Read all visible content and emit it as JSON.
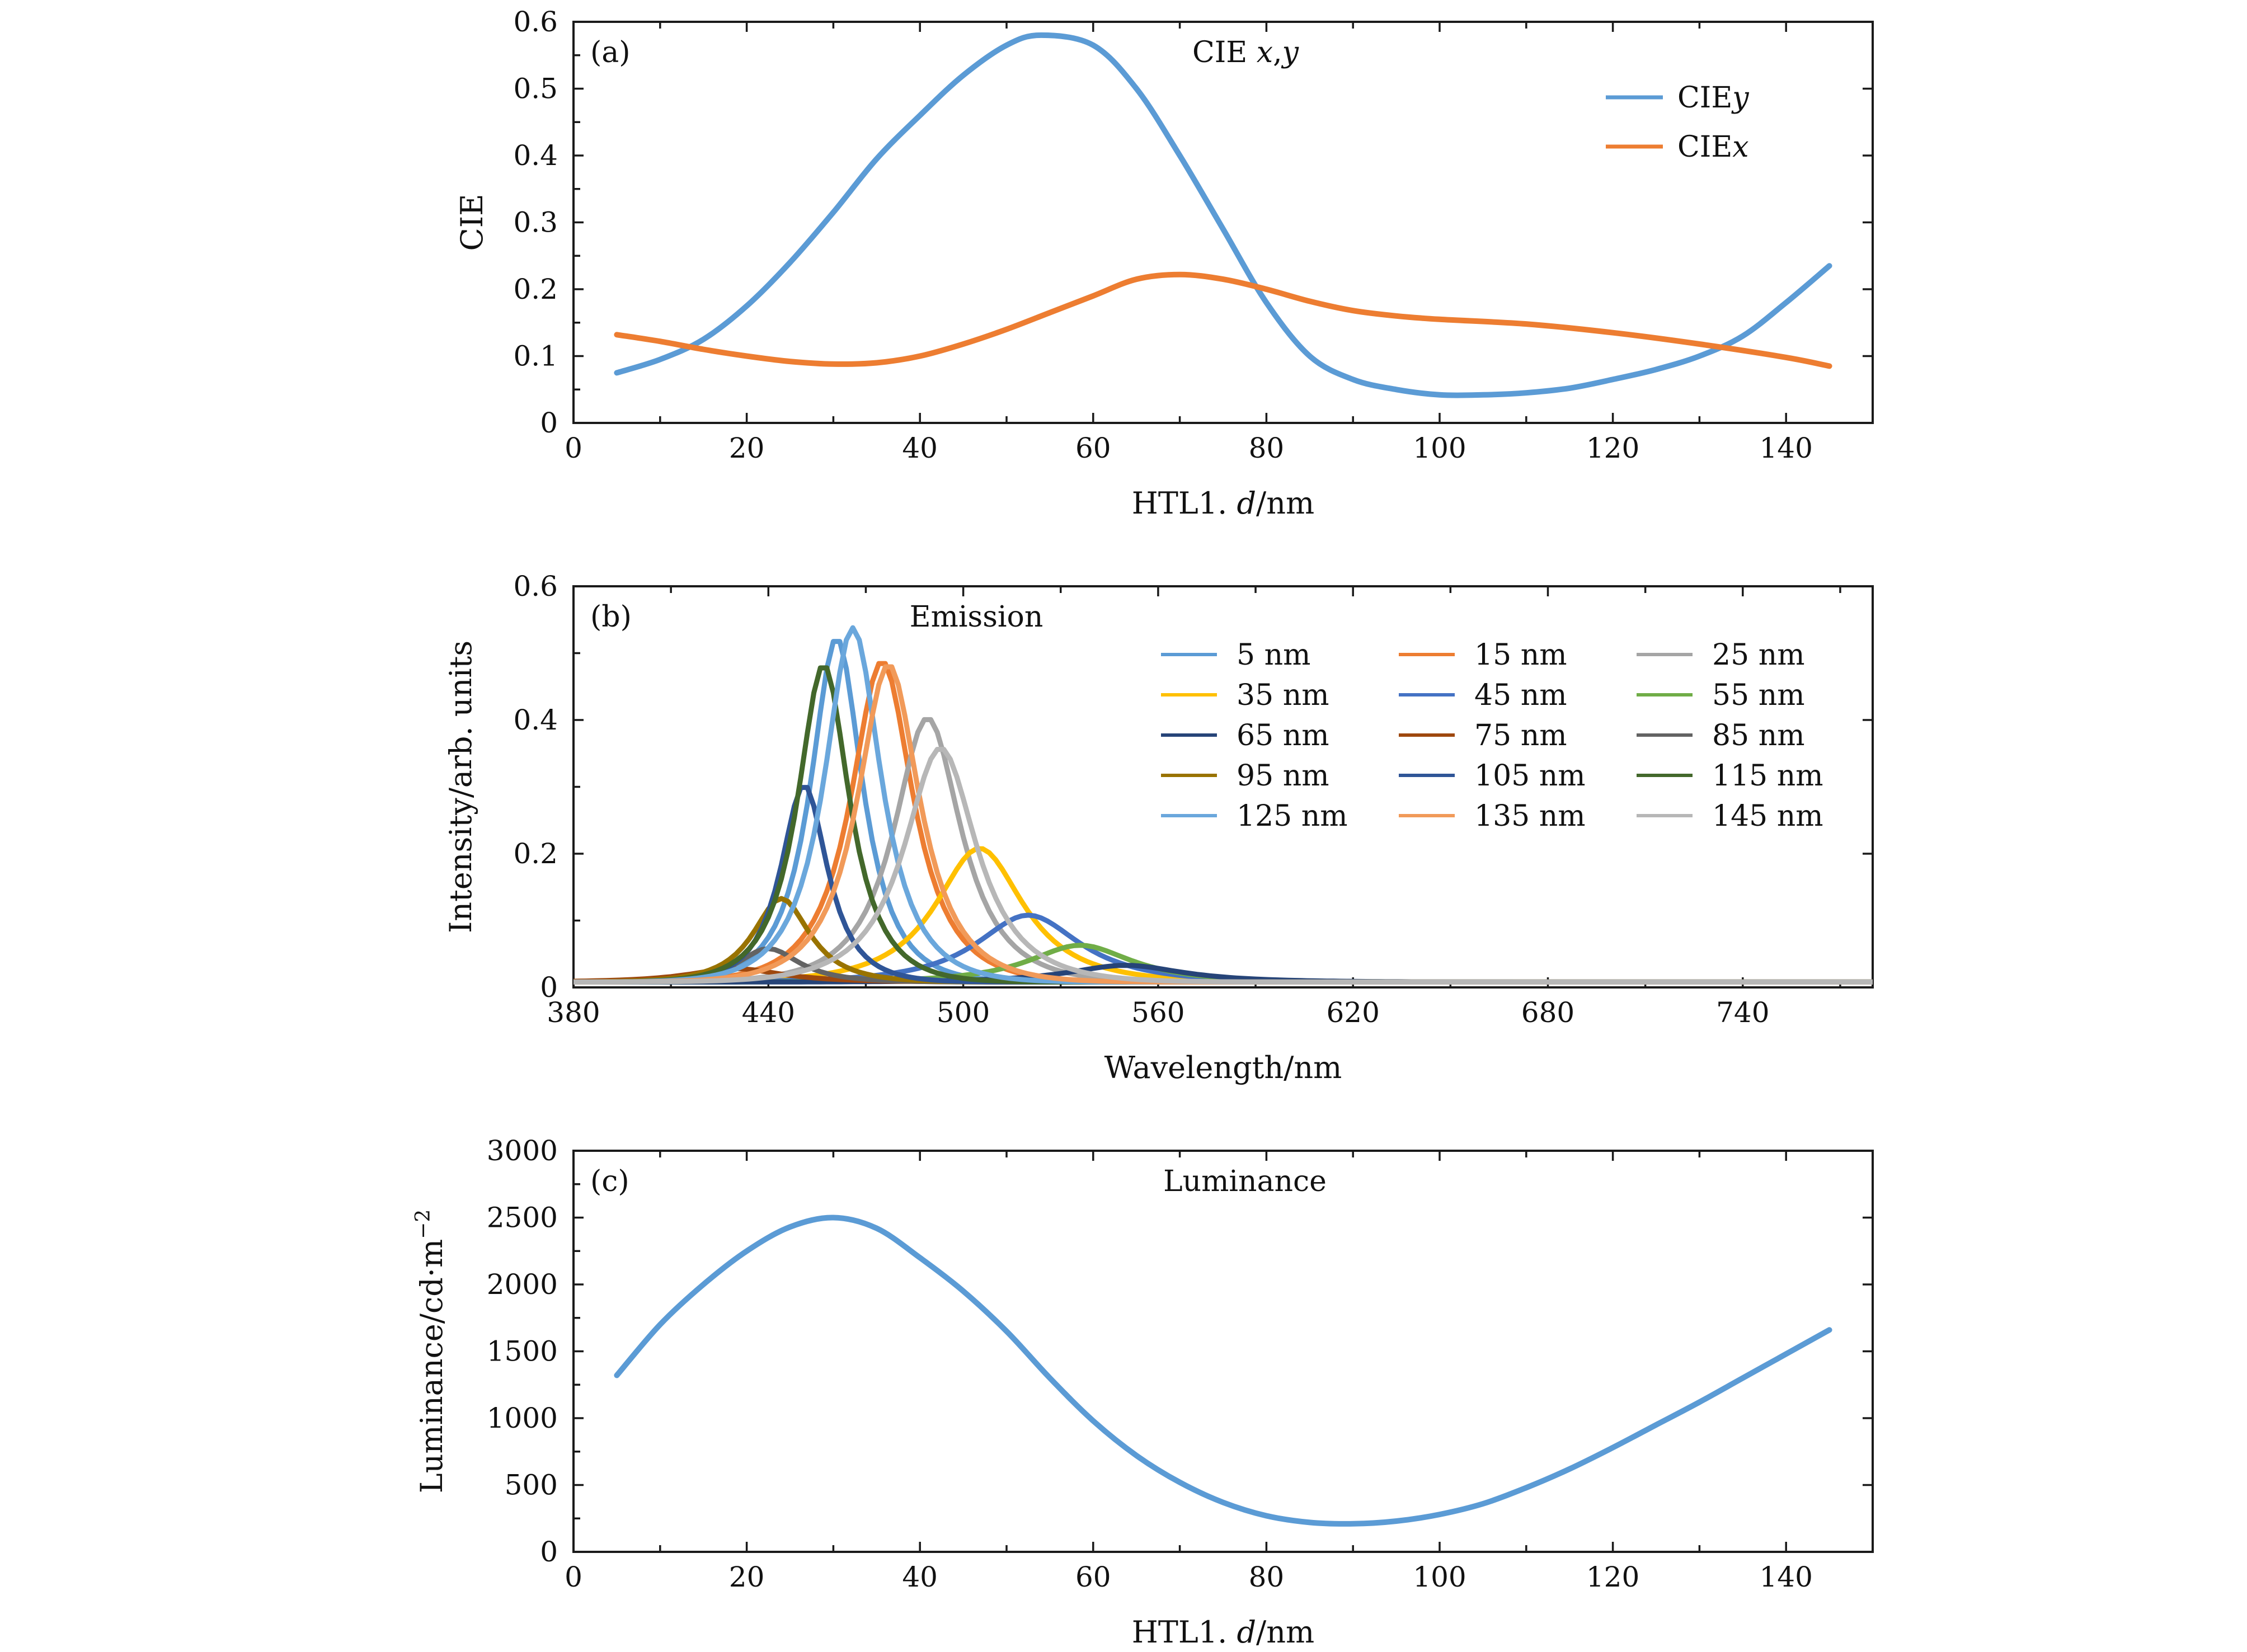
{
  "chart_data": [
    {
      "type": "line",
      "panel_label": "(a)",
      "title": "CIE x,y",
      "xlabel": "HTL1. d/nm",
      "ylabel": "CIE",
      "xlim": [
        0,
        150
      ],
      "ylim": [
        0,
        0.6
      ],
      "xticks": [
        0,
        20,
        40,
        60,
        80,
        100,
        120,
        140
      ],
      "yticks": [
        0,
        0.1,
        0.2,
        0.3,
        0.4,
        0.5,
        0.6
      ],
      "ytick_labels": [
        "0",
        "0.1",
        "0.2",
        "0.3",
        "0.4",
        "0.5",
        "0.6"
      ],
      "legend_position": "top-right",
      "series": [
        {
          "name": "CIEy",
          "color": "#5b9bd5",
          "x": [
            5,
            10,
            15,
            20,
            25,
            30,
            35,
            40,
            45,
            50,
            54,
            60,
            65,
            70,
            75,
            80,
            85,
            90,
            95,
            100,
            105,
            110,
            115,
            120,
            125,
            130,
            135,
            140,
            145
          ],
          "y": [
            0.075,
            0.095,
            0.125,
            0.175,
            0.24,
            0.315,
            0.395,
            0.46,
            0.52,
            0.565,
            0.58,
            0.565,
            0.5,
            0.4,
            0.29,
            0.18,
            0.1,
            0.065,
            0.05,
            0.042,
            0.042,
            0.045,
            0.052,
            0.065,
            0.08,
            0.1,
            0.13,
            0.18,
            0.235
          ]
        },
        {
          "name": "CIEx",
          "color": "#ed7d31",
          "x": [
            5,
            10,
            15,
            20,
            25,
            30,
            35,
            40,
            45,
            50,
            55,
            60,
            65,
            70,
            75,
            80,
            85,
            90,
            95,
            100,
            110,
            120,
            130,
            140,
            145
          ],
          "y": [
            0.132,
            0.122,
            0.11,
            0.1,
            0.092,
            0.088,
            0.09,
            0.1,
            0.118,
            0.14,
            0.165,
            0.19,
            0.215,
            0.222,
            0.215,
            0.2,
            0.182,
            0.168,
            0.16,
            0.155,
            0.148,
            0.135,
            0.118,
            0.098,
            0.085
          ]
        }
      ]
    },
    {
      "type": "line",
      "panel_label": "(b)",
      "title": "Emission",
      "xlabel": "Wavelength/nm",
      "ylabel": "Intensity/arb. units",
      "xlim": [
        380,
        780
      ],
      "ylim": [
        0,
        0.6
      ],
      "xticks": [
        380,
        440,
        500,
        560,
        620,
        680,
        740
      ],
      "yticks": [
        0,
        0.2,
        0.4,
        0.6
      ],
      "ytick_labels": [
        "0",
        "0.2",
        "0.4",
        "0.6"
      ],
      "legend_position": "top-right",
      "baseline": 0.008,
      "series": [
        {
          "name": "5 nm",
          "color": "#5b9bd5",
          "peak_nm": 461,
          "peak_intensity": 0.515,
          "width_nm": 10
        },
        {
          "name": "15 nm",
          "color": "#ed7d31",
          "peak_nm": 475,
          "peak_intensity": 0.48,
          "width_nm": 12
        },
        {
          "name": "25 nm",
          "color": "#a5a5a5",
          "peak_nm": 489,
          "peak_intensity": 0.395,
          "width_nm": 13
        },
        {
          "name": "35 nm",
          "color": "#ffc000",
          "peak_nm": 505,
          "peak_intensity": 0.2,
          "width_nm": 17
        },
        {
          "name": "45 nm",
          "color": "#4472c4",
          "peak_nm": 520,
          "peak_intensity": 0.1,
          "width_nm": 20
        },
        {
          "name": "55 nm",
          "color": "#70ad47",
          "peak_nm": 536,
          "peak_intensity": 0.055,
          "width_nm": 20
        },
        {
          "name": "65 nm",
          "color": "#264478",
          "peak_nm": 550,
          "peak_intensity": 0.025,
          "width_nm": 22
        },
        {
          "name": "75 nm",
          "color": "#9e480e",
          "peak_nm": 430,
          "peak_intensity": 0.02,
          "width_nm": 18
        },
        {
          "name": "85 nm",
          "color": "#636363",
          "peak_nm": 440,
          "peak_intensity": 0.05,
          "width_nm": 12
        },
        {
          "name": "95 nm",
          "color": "#997300",
          "peak_nm": 444,
          "peak_intensity": 0.125,
          "width_nm": 11
        },
        {
          "name": "105 nm",
          "color": "#2f5597",
          "peak_nm": 451,
          "peak_intensity": 0.295,
          "width_nm": 9
        },
        {
          "name": "115 nm",
          "color": "#43682b",
          "peak_nm": 457,
          "peak_intensity": 0.475,
          "width_nm": 10
        },
        {
          "name": "125 nm",
          "color": "#6aa7dc",
          "peak_nm": 466,
          "peak_intensity": 0.53,
          "width_nm": 11
        },
        {
          "name": "135 nm",
          "color": "#f19a59",
          "peak_nm": 477,
          "peak_intensity": 0.475,
          "width_nm": 12
        },
        {
          "name": "145 nm",
          "color": "#b7b7b7",
          "peak_nm": 493,
          "peak_intensity": 0.35,
          "width_nm": 14
        }
      ]
    },
    {
      "type": "line",
      "panel_label": "(c)",
      "title": "Luminance",
      "xlabel": "HTL1. d/nm",
      "ylabel": "Luminance/cd·m",
      "ylabel_superscript": "−2",
      "xlim": [
        0,
        150
      ],
      "ylim": [
        0,
        3000
      ],
      "xticks": [
        0,
        20,
        40,
        60,
        80,
        100,
        120,
        140
      ],
      "yticks": [
        0,
        500,
        1000,
        1500,
        2000,
        2500,
        3000
      ],
      "ytick_labels": [
        "0",
        "500",
        "1000",
        "1500",
        "2000",
        "2500",
        "3000"
      ],
      "series": [
        {
          "name": "",
          "color": "#5b9bd5",
          "x": [
            5,
            10,
            15,
            20,
            25,
            30,
            35,
            40,
            45,
            50,
            55,
            60,
            65,
            70,
            75,
            80,
            85,
            90,
            95,
            100,
            105,
            110,
            115,
            120,
            125,
            130,
            135,
            140,
            145
          ],
          "y": [
            1320,
            1700,
            2000,
            2250,
            2430,
            2500,
            2420,
            2200,
            1950,
            1650,
            1300,
            980,
            720,
            520,
            370,
            270,
            220,
            210,
            230,
            280,
            360,
            480,
            620,
            780,
            950,
            1120,
            1300,
            1480,
            1660
          ]
        }
      ]
    }
  ]
}
